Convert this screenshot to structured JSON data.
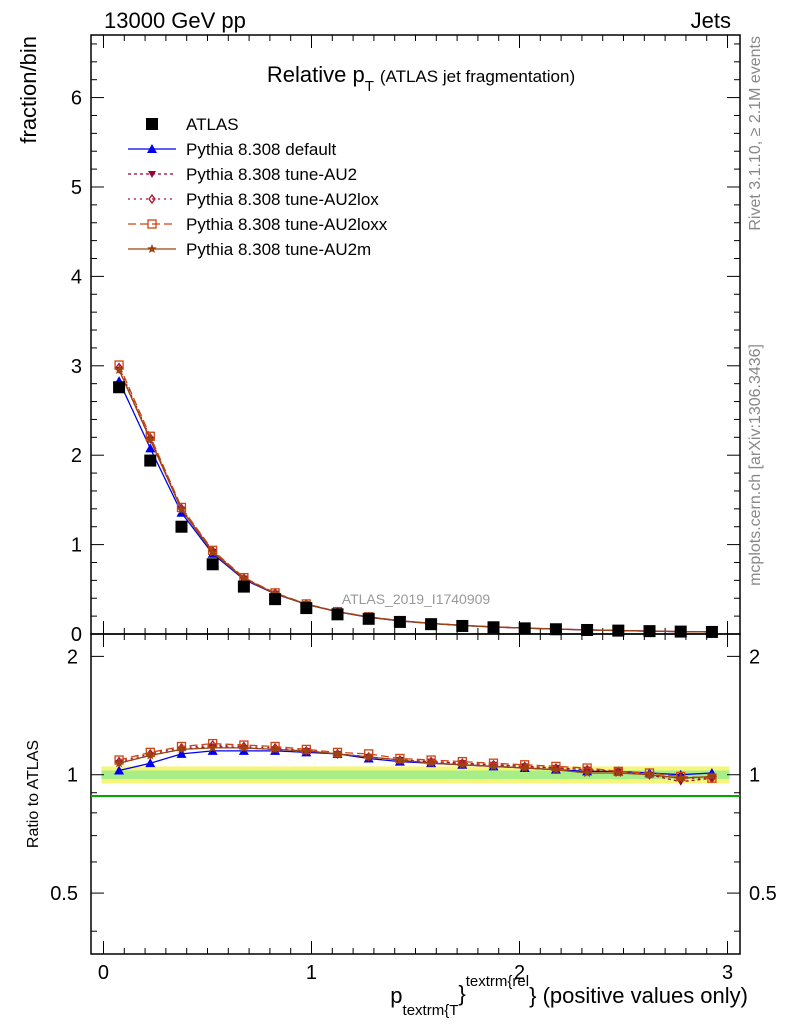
{
  "header": {
    "left": "13000 GeV pp",
    "right": "Jets"
  },
  "side_labels": {
    "top": "Rivet 3.1.10, ≥ 2.1M events",
    "bottom": "mcplots.cern.ch [arXiv:1306.3436]"
  },
  "watermark": "ATLAS_2019_I1740909",
  "chart_data": {
    "type": "scatter",
    "title": "Relative p",
    "title_sub": "T",
    "title_rest": "(ATLAS jet fragmentation)",
    "ylabel": "fraction/bin",
    "ratio_ylabel": "Ratio to ATLAS",
    "xlabel_main": "p",
    "xlabel_sub": "textrm{T",
    "xlabel_brace": "}",
    "xlabel_sup": "textrm{rel",
    "xlabel_rest": "} (positive values only)",
    "xlim": [
      -0.06,
      3.06
    ],
    "ylim": [
      0,
      6.7
    ],
    "ratio_ylim": [
      0.35,
      2.28
    ],
    "x_ticks": [
      "0",
      "1",
      "2",
      "3"
    ],
    "y_ticks": [
      "0",
      "1",
      "2",
      "3",
      "4",
      "5",
      "6"
    ],
    "ratio_ticks": [
      "0.5",
      "1",
      "2"
    ],
    "ratio_tick_values": [
      0.5,
      1,
      2
    ],
    "x": [
      0.075,
      0.225,
      0.375,
      0.525,
      0.675,
      0.825,
      0.975,
      1.125,
      1.275,
      1.425,
      1.575,
      1.725,
      1.875,
      2.025,
      2.175,
      2.325,
      2.475,
      2.625,
      2.775,
      2.925
    ],
    "data": {
      "name": "ATLAS",
      "values": [
        2.76,
        1.94,
        1.2,
        0.78,
        0.53,
        0.39,
        0.29,
        0.22,
        0.17,
        0.135,
        0.11,
        0.09,
        0.075,
        0.063,
        0.053,
        0.045,
        0.038,
        0.032,
        0.027,
        0.023
      ],
      "band_fraction": 0.025,
      "color": "#000000"
    },
    "series": [
      {
        "name": "Pythia 8.308 default",
        "color": "#0000ee",
        "marker": "triangle-up",
        "dash": "",
        "ratio": [
          1.025,
          1.07,
          1.13,
          1.15,
          1.15,
          1.15,
          1.14,
          1.13,
          1.1,
          1.08,
          1.07,
          1.06,
          1.05,
          1.04,
          1.03,
          1.02,
          1.02,
          1.01,
          1.0,
          1.01
        ]
      },
      {
        "name": "Pythia 8.308 tune-AU2",
        "color": "#990033",
        "marker": "triangle-down",
        "dash": "3,3",
        "ratio": [
          1.07,
          1.12,
          1.16,
          1.18,
          1.17,
          1.16,
          1.15,
          1.13,
          1.11,
          1.09,
          1.08,
          1.07,
          1.06,
          1.05,
          1.04,
          1.03,
          1.02,
          1.0,
          0.96,
          0.98
        ]
      },
      {
        "name": "Pythia 8.308 tune-AU2lox",
        "color": "#aa1133",
        "marker": "diamond-open",
        "dash": "2,4",
        "ratio": [
          1.08,
          1.13,
          1.17,
          1.19,
          1.18,
          1.17,
          1.15,
          1.13,
          1.11,
          1.09,
          1.08,
          1.07,
          1.06,
          1.05,
          1.04,
          1.03,
          1.02,
          1.0,
          0.98,
          0.98
        ]
      },
      {
        "name": "Pythia 8.308 tune-AU2loxx",
        "color": "#cc4411",
        "marker": "square-open",
        "dash": "8,4",
        "ratio": [
          1.09,
          1.14,
          1.18,
          1.2,
          1.19,
          1.18,
          1.16,
          1.14,
          1.13,
          1.1,
          1.09,
          1.08,
          1.07,
          1.06,
          1.05,
          1.04,
          1.02,
          1.01,
          0.99,
          0.98
        ]
      },
      {
        "name": "Pythia 8.308 tune-AU2m",
        "color": "#994411",
        "marker": "star",
        "dash": "",
        "ratio": [
          1.07,
          1.12,
          1.16,
          1.17,
          1.17,
          1.16,
          1.15,
          1.13,
          1.11,
          1.09,
          1.07,
          1.06,
          1.05,
          1.04,
          1.03,
          1.01,
          1.01,
          1.0,
          0.98,
          0.99
        ]
      }
    ]
  }
}
